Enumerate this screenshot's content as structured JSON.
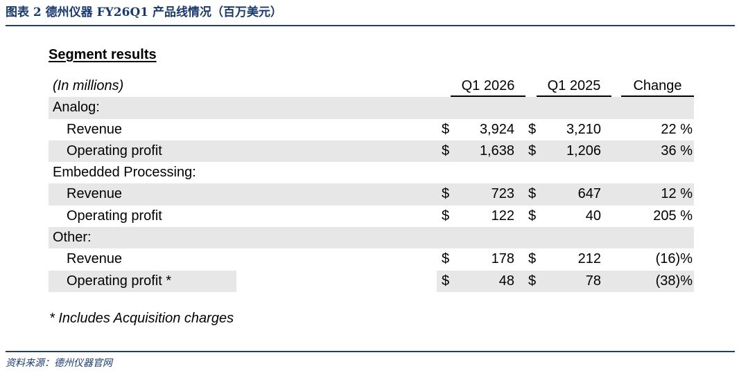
{
  "figure_title": "图表 2  德州仪器 FY26Q1 产品线情况（百万美元）",
  "source": "资料来源：德州仪器官网",
  "segment_title": "Segment results",
  "header": {
    "unit": "(In millions)",
    "col1": "Q1 2026",
    "col2": "Q1 2025",
    "col3": "Change"
  },
  "sections": [
    {
      "name": "Analog:",
      "rows": [
        {
          "label": "Revenue",
          "cur1": "$",
          "v1": "3,924",
          "cur2": "$",
          "v2": "3,210",
          "change": "22 %"
        },
        {
          "label": "Operating profit",
          "cur1": "$",
          "v1": "1,638",
          "cur2": "$",
          "v2": "1,206",
          "change": "36 %"
        }
      ]
    },
    {
      "name": "Embedded Processing:",
      "rows": [
        {
          "label": "Revenue",
          "cur1": "$",
          "v1": "723",
          "cur2": "$",
          "v2": "647",
          "change": "12 %"
        },
        {
          "label": "Operating profit",
          "cur1": "$",
          "v1": "122",
          "cur2": "$",
          "v2": "40",
          "change": "205 %"
        }
      ]
    },
    {
      "name": "Other:",
      "rows": [
        {
          "label": "Revenue",
          "cur1": "$",
          "v1": "178",
          "cur2": "$",
          "v2": "212",
          "change": "(16)%"
        },
        {
          "label": "Operating profit *",
          "cur1": "$",
          "v1": "48",
          "cur2": "$",
          "v2": "78",
          "change": "(38)%"
        }
      ]
    }
  ],
  "footnote": "* Includes Acquisition charges"
}
